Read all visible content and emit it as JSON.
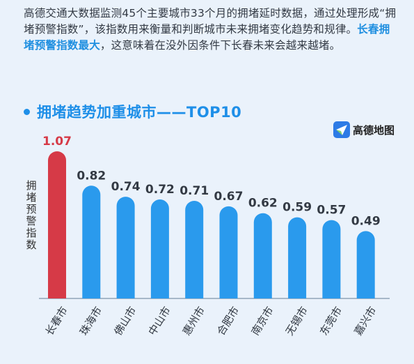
{
  "intro": {
    "part1": "高德交通大数据监测45个主要城市33个月的拥堵延时数据，通过处理形成“拥堵预警指数”，该指数用来衡量和判断城市未来拥堵变化趋势和规律。",
    "highlight": "长春拥堵预警指数最大",
    "part2": "，这意味着在没外因条件下长春未来会越来越堵。"
  },
  "heading": "拥堵趋势加重城市——TOP10",
  "logo_text": "高德地图",
  "colors": {
    "accent": "#1e8fe8",
    "highlight": "#d63a47",
    "bar": "#2a9aed"
  },
  "chart_data": {
    "type": "bar",
    "title": "拥堵趋势加重城市——TOP10",
    "ylabel": "拥堵预警指数",
    "xlabel": "",
    "categories": [
      "长春市",
      "珠海市",
      "佛山市",
      "中山市",
      "惠州市",
      "合肥市",
      "南京市",
      "无锡市",
      "东莞市",
      "嘉兴市"
    ],
    "values": [
      1.07,
      0.82,
      0.74,
      0.72,
      0.71,
      0.67,
      0.62,
      0.59,
      0.57,
      0.49
    ],
    "value_labels": [
      "1.07",
      "0.82",
      "0.74",
      "0.72",
      "0.71",
      "0.67",
      "0.62",
      "0.59",
      "0.57",
      "0.49"
    ],
    "highlight_index": 0,
    "ylim": [
      0,
      1.07
    ],
    "grid": false
  }
}
